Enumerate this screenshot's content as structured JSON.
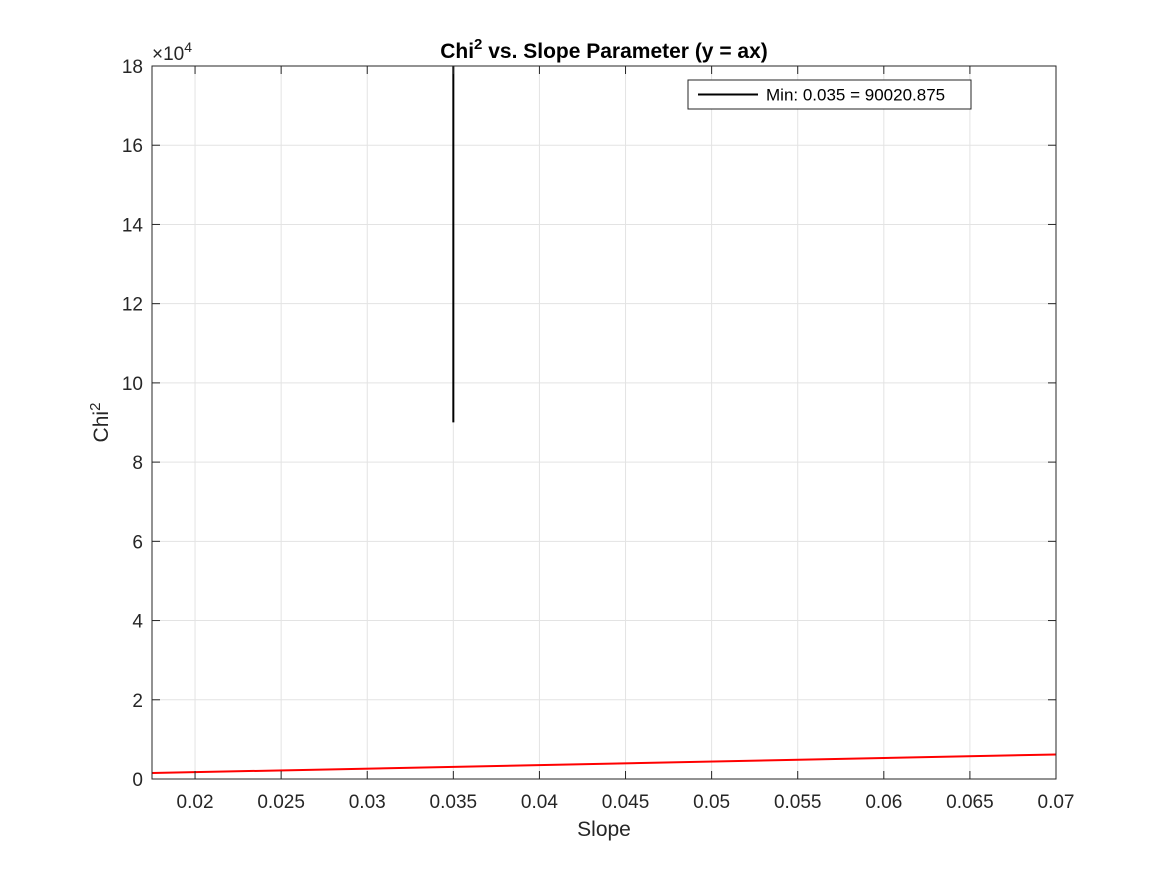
{
  "chart_data": {
    "type": "line",
    "title": {
      "prefix": "Chi",
      "superscript": "2",
      "suffix": " vs. Slope Parameter (y = ax)"
    },
    "xlabel": "Slope",
    "ylabel": {
      "base": "Chi",
      "superscript": "2"
    },
    "y_exponent": {
      "base": "×10",
      "power": "4"
    },
    "xlim": [
      0.0175,
      0.07
    ],
    "ylim": [
      0,
      180000
    ],
    "x_ticks": [
      0.02,
      0.025,
      0.03,
      0.035,
      0.04,
      0.045,
      0.05,
      0.055,
      0.06,
      0.065,
      0.07
    ],
    "x_tick_labels": [
      "0.02",
      "0.025",
      "0.03",
      "0.035",
      "0.04",
      "0.045",
      "0.05",
      "0.055",
      "0.06",
      "0.065",
      "0.07"
    ],
    "y_ticks": [
      0,
      20000,
      40000,
      60000,
      80000,
      100000,
      120000,
      140000,
      160000,
      180000
    ],
    "y_tick_labels": [
      "0",
      "2",
      "4",
      "6",
      "8",
      "10",
      "12",
      "14",
      "16",
      "18"
    ],
    "grid": true,
    "legend_position": "top-right",
    "series": [
      {
        "name": "Min: 0.035 = 90020.875",
        "color": "#000000",
        "x": [
          0.035,
          0.035
        ],
        "y": [
          90020.875,
          180000
        ]
      },
      {
        "color": "#ff0000",
        "x": [
          0.0175,
          0.07
        ],
        "y": [
          1500,
          6200
        ]
      }
    ]
  }
}
